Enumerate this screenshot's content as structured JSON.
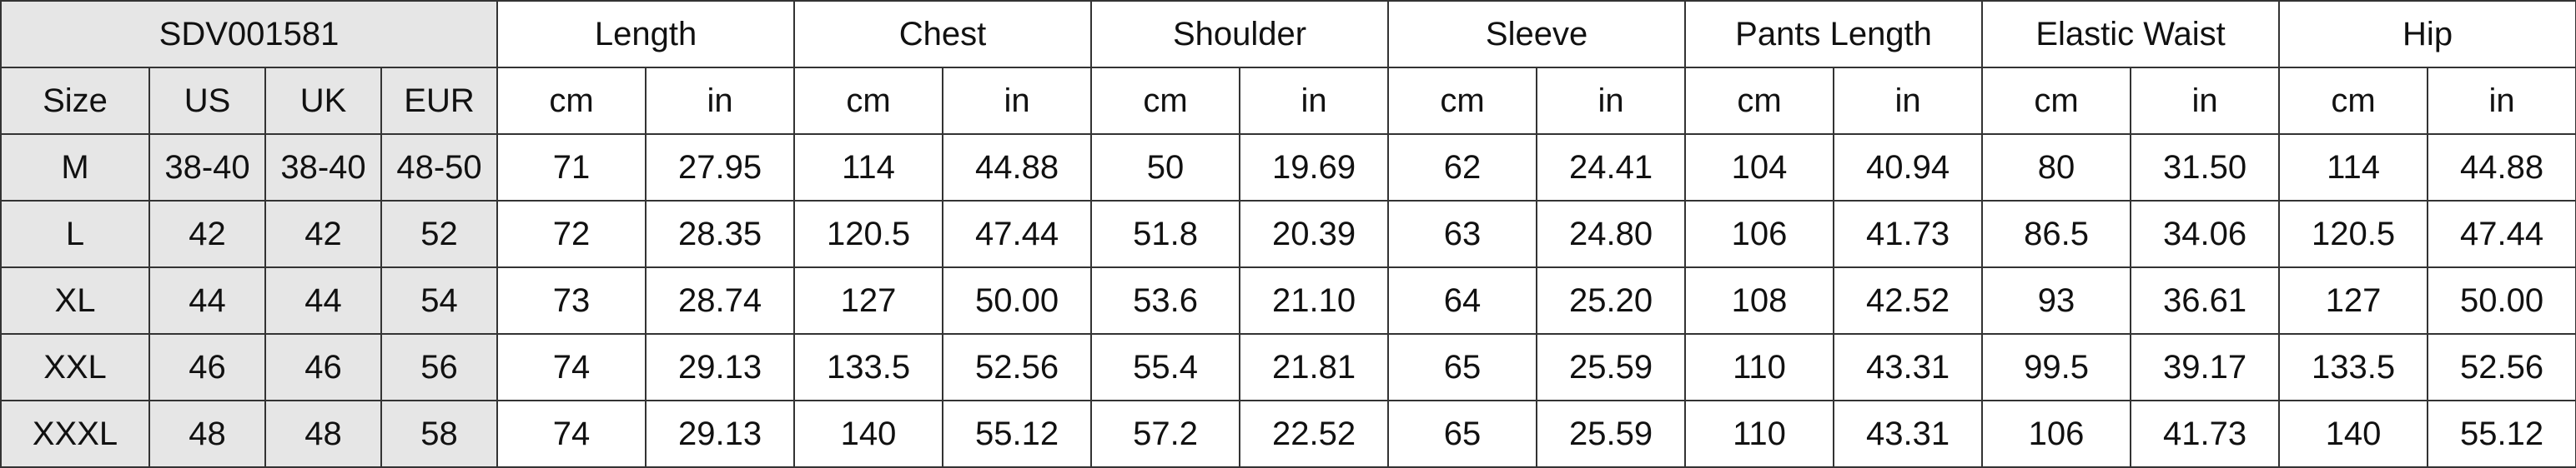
{
  "table": {
    "code": "SDV001581",
    "size_headers": [
      "Size",
      "US",
      "UK",
      "EUR"
    ],
    "measurements": [
      "Length",
      "Chest",
      "Shoulder",
      "Sleeve",
      "Pants Length",
      "Elastic Waist",
      "Hip"
    ],
    "unit_cm": "cm",
    "unit_in": "in",
    "header_bg": "#e6e6e6",
    "rows": [
      {
        "size": "M",
        "us": "38-40",
        "uk": "38-40",
        "eur": "48-50",
        "values": [
          "71",
          "27.95",
          "114",
          "44.88",
          "50",
          "19.69",
          "62",
          "24.41",
          "104",
          "40.94",
          "80",
          "31.50",
          "114",
          "44.88"
        ]
      },
      {
        "size": "L",
        "us": "42",
        "uk": "42",
        "eur": "52",
        "values": [
          "72",
          "28.35",
          "120.5",
          "47.44",
          "51.8",
          "20.39",
          "63",
          "24.80",
          "106",
          "41.73",
          "86.5",
          "34.06",
          "120.5",
          "47.44"
        ]
      },
      {
        "size": "XL",
        "us": "44",
        "uk": "44",
        "eur": "54",
        "values": [
          "73",
          "28.74",
          "127",
          "50.00",
          "53.6",
          "21.10",
          "64",
          "25.20",
          "108",
          "42.52",
          "93",
          "36.61",
          "127",
          "50.00"
        ]
      },
      {
        "size": "XXL",
        "us": "46",
        "uk": "46",
        "eur": "56",
        "values": [
          "74",
          "29.13",
          "133.5",
          "52.56",
          "55.4",
          "21.81",
          "65",
          "25.59",
          "110",
          "43.31",
          "99.5",
          "39.17",
          "133.5",
          "52.56"
        ]
      },
      {
        "size": "XXXL",
        "us": "48",
        "uk": "48",
        "eur": "58",
        "values": [
          "74",
          "29.13",
          "140",
          "55.12",
          "57.2",
          "22.52",
          "65",
          "25.59",
          "110",
          "43.31",
          "106",
          "41.73",
          "140",
          "55.12"
        ]
      }
    ]
  }
}
